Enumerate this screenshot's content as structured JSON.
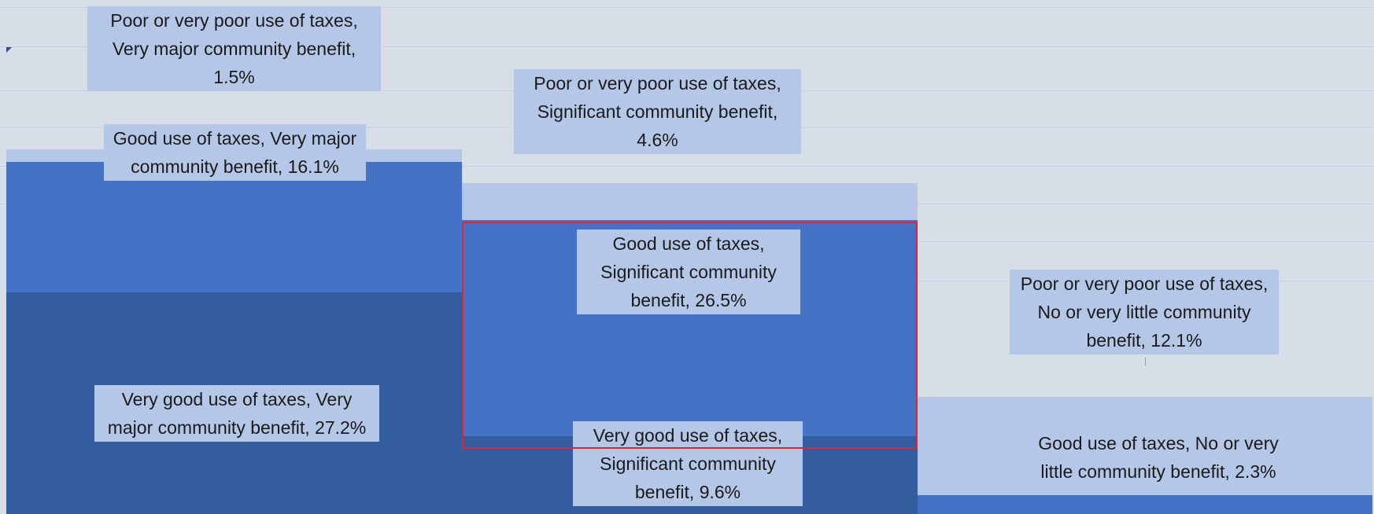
{
  "chart_data": {
    "type": "bar",
    "subtype": "stacked-column-mosaic",
    "title": "",
    "xlabel": "",
    "ylabel": "",
    "grid": true,
    "legend": "none",
    "colors": {
      "background": "#d7dee8",
      "very_good": "#345da0",
      "good": "#4472c4",
      "poor": "#b4c7e7",
      "label_box": "#b4c7e7",
      "highlight": "#e8222a"
    },
    "columns": [
      {
        "benefit": "Very major community benefit",
        "segments": [
          {
            "use": "Very good use of taxes",
            "value": 27.2,
            "label": "Very good use of taxes, Very major community benefit, 27.2%"
          },
          {
            "use": "Good  use of taxes",
            "value": 16.1,
            "label": "Good  use of taxes, Very major community benefit, 16.1%"
          },
          {
            "use": "Poor or very poor use of taxes",
            "value": 1.5,
            "label": "Poor or very poor use of taxes, Very major community benefit, 1.5%"
          }
        ]
      },
      {
        "benefit": "Significant community benefit",
        "segments": [
          {
            "use": "Very good use of taxes",
            "value": 9.6,
            "label": "Very good use of taxes, Significant community benefit, 9.6%"
          },
          {
            "use": "Good  use of taxes",
            "value": 26.5,
            "label": "Good  use of taxes, Significant community benefit, 26.5%",
            "highlighted": true
          },
          {
            "use": "Poor or very poor use of taxes",
            "value": 4.6,
            "label": "Poor or very poor use of taxes, Significant community benefit, 4.6%"
          }
        ]
      },
      {
        "benefit": "No or very little community benefit",
        "segments": [
          {
            "use": "Good  use of taxes",
            "value": 2.3,
            "label": "Good  use of taxes, No or very little community benefit, 2.3%"
          },
          {
            "use": "Poor or very poor use of taxes",
            "value": 12.1,
            "label": "Poor or very poor use of taxes, No or very little community benefit, 12.1%"
          }
        ]
      }
    ]
  }
}
